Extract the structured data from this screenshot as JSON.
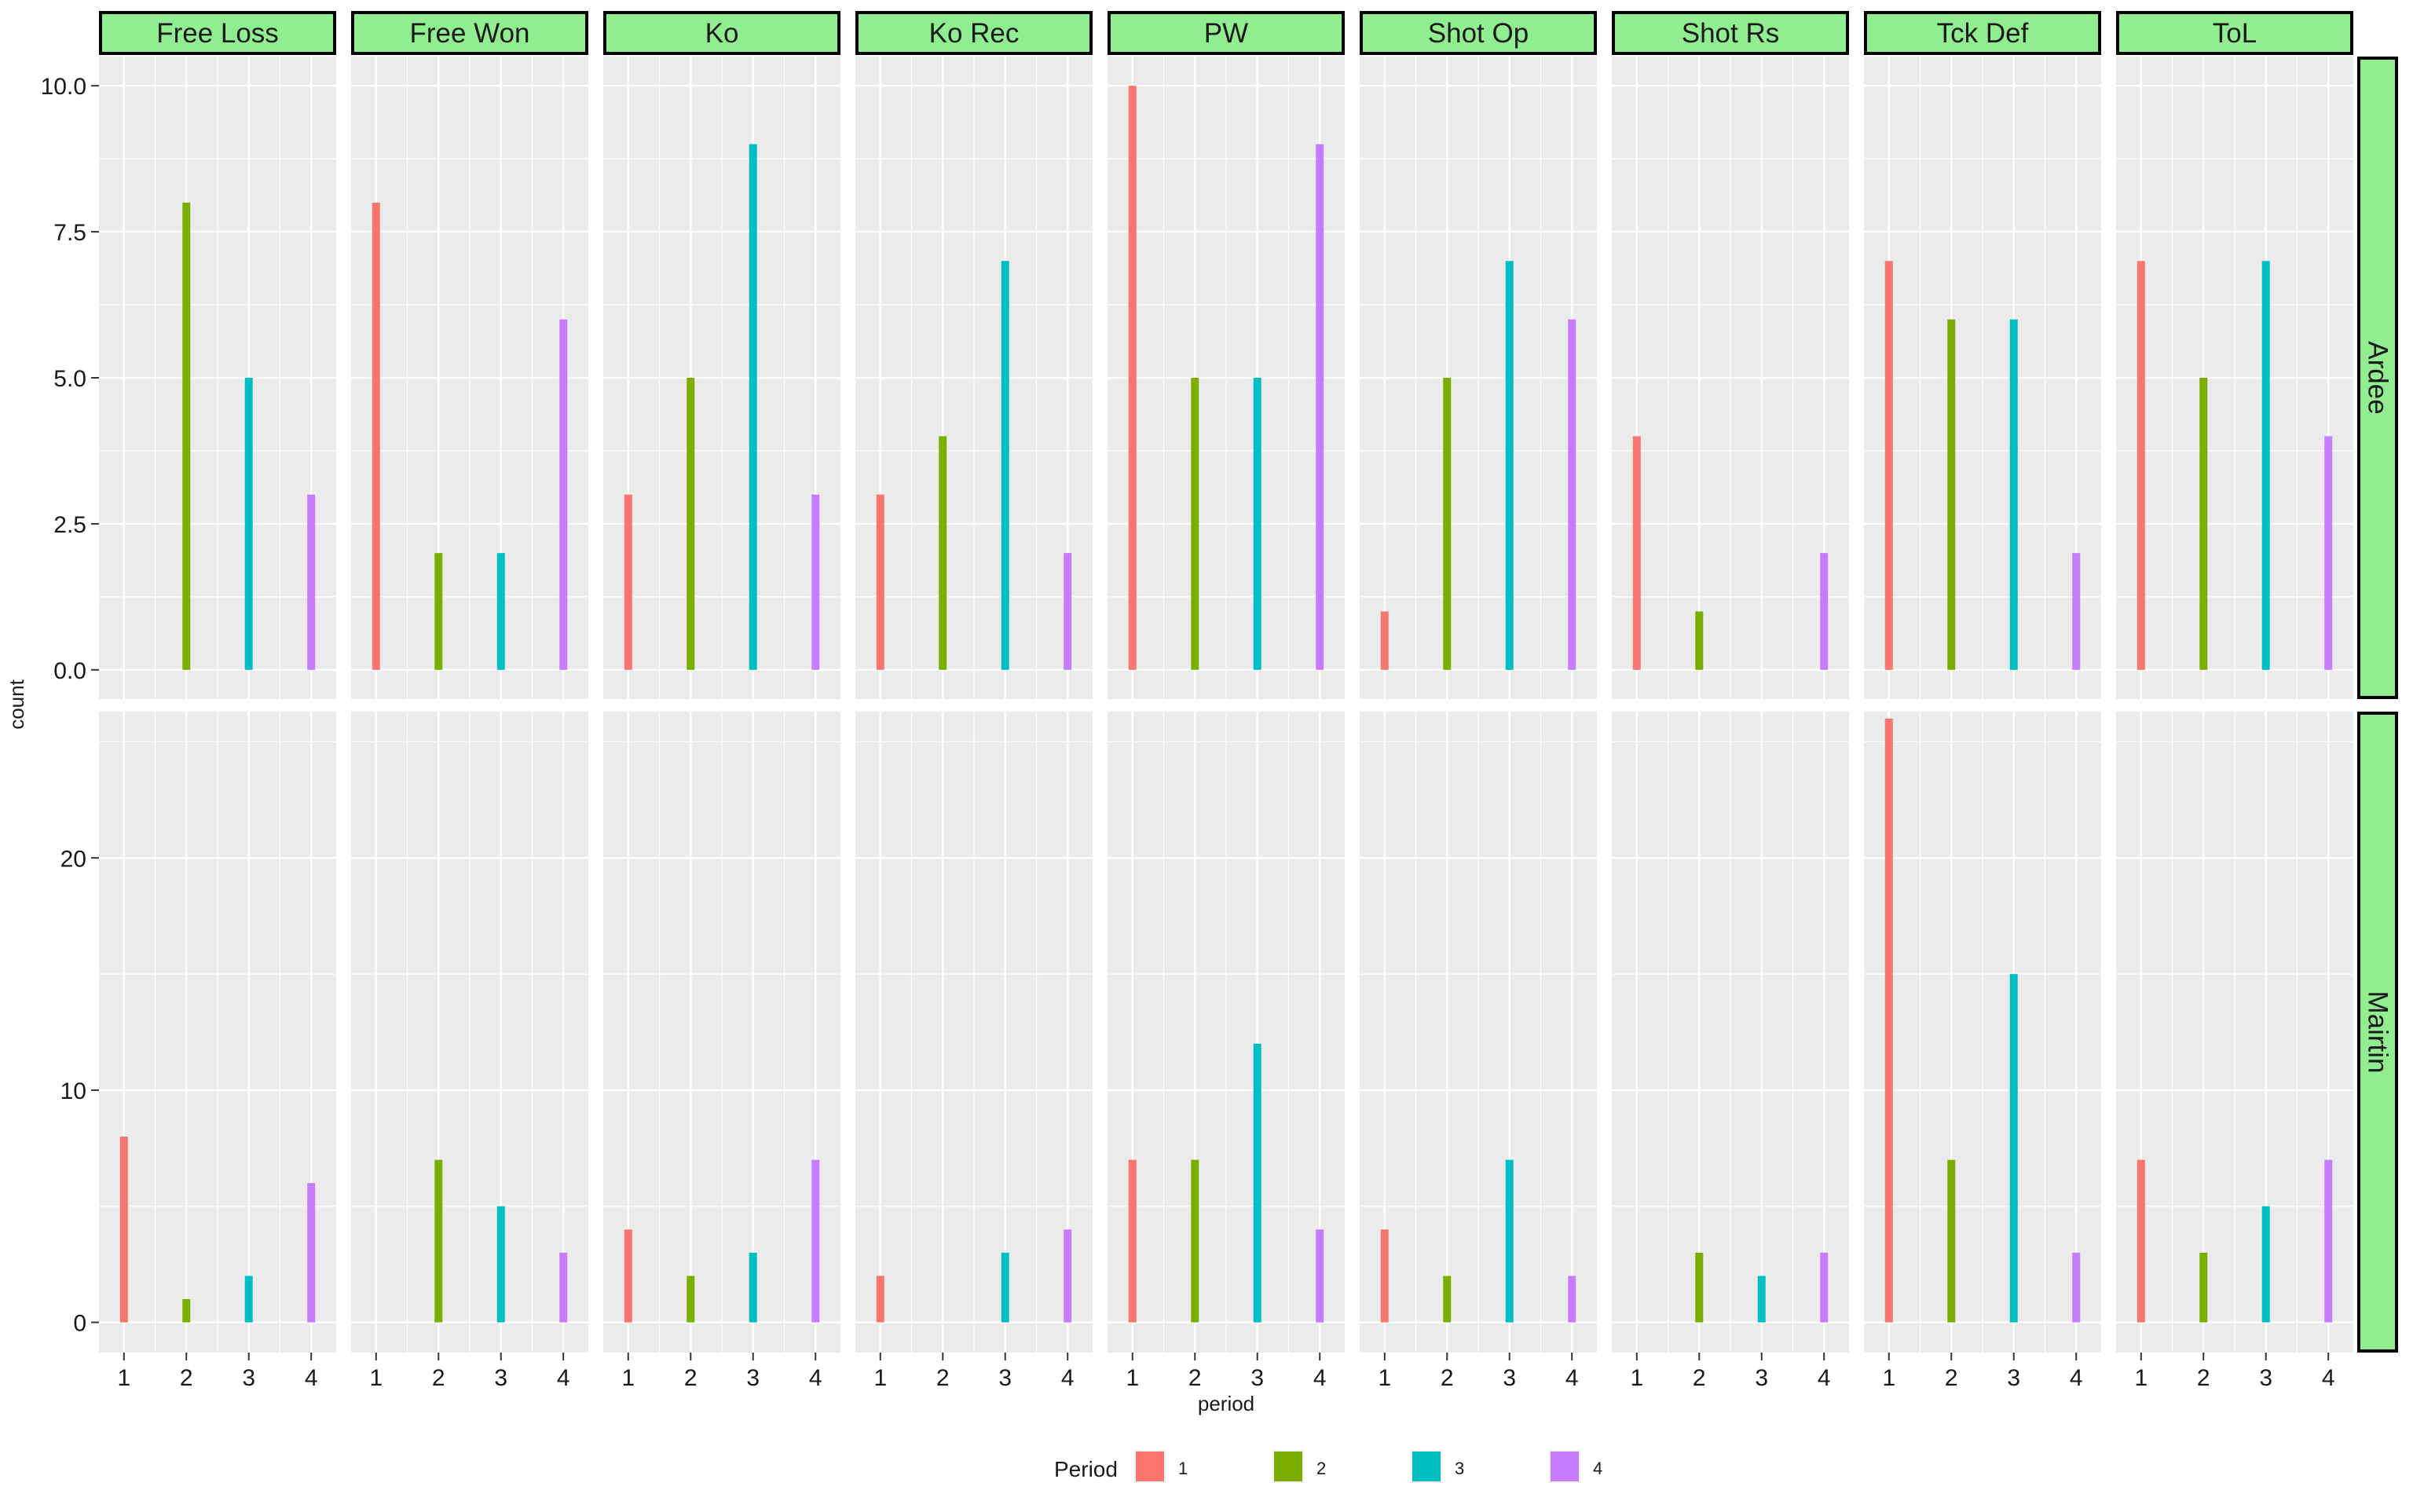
{
  "chart_data": {
    "type": "bar",
    "xlabel": "period",
    "ylabel": "count",
    "x": [
      "1",
      "2",
      "3",
      "4"
    ],
    "facet_columns": [
      "Free Loss",
      "Free Won",
      "Ko",
      "Ko Rec",
      "PW",
      "Shot Op",
      "Shot Rs",
      "Tck Def",
      "ToL"
    ],
    "facet_rows": [
      {
        "label": "Ardee",
        "ylim": [
          -0.5,
          10.5
        ],
        "y_ticks": [
          0,
          2.5,
          5,
          7.5,
          10
        ],
        "y_tick_labels": [
          "0.0",
          "2.5",
          "5.0",
          "7.5",
          "10.0"
        ],
        "values": {
          "Free Loss": [
            0,
            8,
            5,
            3
          ],
          "Free Won": [
            8,
            2,
            2,
            6
          ],
          "Ko": [
            3,
            5,
            9,
            3
          ],
          "Ko Rec": [
            3,
            4,
            7,
            2
          ],
          "PW": [
            10,
            5,
            5,
            9
          ],
          "Shot Op": [
            1,
            5,
            7,
            6
          ],
          "Shot Rs": [
            4,
            1,
            0,
            2
          ],
          "Tck Def": [
            7,
            6,
            6,
            2
          ],
          "ToL": [
            7,
            5,
            7,
            4
          ]
        }
      },
      {
        "label": "Mairtin",
        "ylim": [
          -1.3,
          26.3
        ],
        "y_ticks": [
          0,
          10,
          20
        ],
        "y_tick_labels": [
          "0",
          "10",
          "20"
        ],
        "values": {
          "Free Loss": [
            8,
            1,
            2,
            6
          ],
          "Free Won": [
            0,
            7,
            5,
            3
          ],
          "Ko": [
            4,
            2,
            3,
            7
          ],
          "Ko Rec": [
            2,
            0,
            3,
            4
          ],
          "PW": [
            7,
            7,
            12,
            4
          ],
          "Shot Op": [
            4,
            2,
            7,
            2
          ],
          "Shot Rs": [
            0,
            3,
            2,
            3
          ],
          "Tck Def": [
            26,
            7,
            15,
            3
          ],
          "ToL": [
            7,
            3,
            5,
            7
          ]
        }
      }
    ],
    "legend": {
      "title": "Period",
      "position": "bottom",
      "entries": [
        {
          "label": "1",
          "color": "#F8766D"
        },
        {
          "label": "2",
          "color": "#7CAE00"
        },
        {
          "label": "3",
          "color": "#00BFC4"
        },
        {
          "label": "4",
          "color": "#C77CFF"
        }
      ]
    },
    "colors": {
      "panel_background": "#EBEBEB",
      "grid": "#FFFFFF",
      "strip_fill": "#90EE90",
      "strip_border": "#000000"
    },
    "grid": true
  }
}
